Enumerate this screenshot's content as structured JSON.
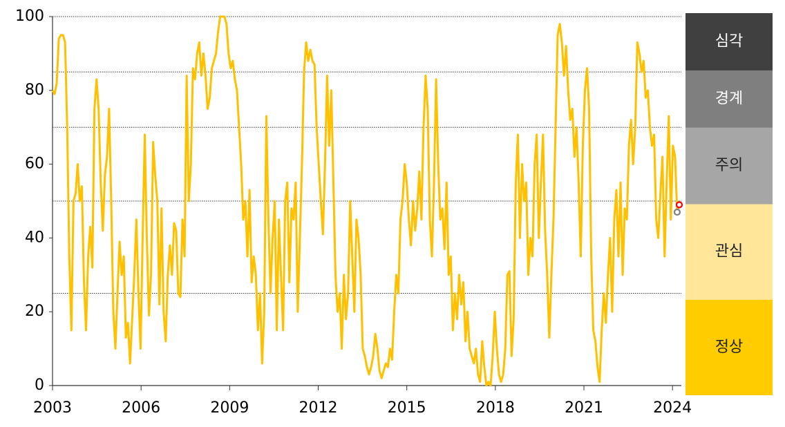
{
  "chart_data": {
    "type": "line",
    "x": [
      2003,
      2003.071,
      2003.142,
      2003.213,
      2003.284,
      2003.355,
      2003.426,
      2003.497,
      2003.568,
      2003.639,
      2003.71,
      2003.781,
      2003.852,
      2003.923,
      2003.994,
      2004.065,
      2004.136,
      2004.207,
      2004.278,
      2004.349,
      2004.42,
      2004.491,
      2004.562,
      2004.633,
      2004.704,
      2004.775,
      2004.846,
      2004.917,
      2004.988,
      2005.059,
      2005.13,
      2005.201,
      2005.272,
      2005.343,
      2005.414,
      2005.485,
      2005.556,
      2005.627,
      2005.698,
      2005.769,
      2005.84,
      2005.911,
      2005.982,
      2006.053,
      2006.124,
      2006.195,
      2006.266,
      2006.337,
      2006.408,
      2006.479,
      2006.55,
      2006.621,
      2006.692,
      2006.763,
      2006.834,
      2006.905,
      2006.976,
      2007.047,
      2007.118,
      2007.189,
      2007.26,
      2007.331,
      2007.402,
      2007.473,
      2007.544,
      2007.615,
      2007.686,
      2007.757,
      2007.828,
      2007.899,
      2007.97,
      2008.041,
      2008.112,
      2008.183,
      2008.254,
      2008.325,
      2008.396,
      2008.467,
      2008.538,
      2008.609,
      2008.68,
      2008.751,
      2008.822,
      2008.893,
      2008.964,
      2009.035,
      2009.106,
      2009.177,
      2009.248,
      2009.319,
      2009.39,
      2009.461,
      2009.532,
      2009.603,
      2009.674,
      2009.745,
      2009.816,
      2009.887,
      2009.958,
      2010.029,
      2010.1,
      2010.171,
      2010.242,
      2010.313,
      2010.384,
      2010.455,
      2010.526,
      2010.597,
      2010.668,
      2010.739,
      2010.81,
      2010.881,
      2010.952,
      2011.023,
      2011.094,
      2011.165,
      2011.236,
      2011.307,
      2011.378,
      2011.449,
      2011.52,
      2011.591,
      2011.662,
      2011.733,
      2011.804,
      2011.875,
      2011.946,
      2012.017,
      2012.088,
      2012.159,
      2012.23,
      2012.301,
      2012.372,
      2012.443,
      2012.514,
      2012.585,
      2012.656,
      2012.727,
      2012.798,
      2012.869,
      2012.94,
      2013.011,
      2013.082,
      2013.153,
      2013.224,
      2013.295,
      2013.366,
      2013.437,
      2013.508,
      2013.579,
      2013.65,
      2013.721,
      2013.792,
      2013.863,
      2013.934,
      2014.005,
      2014.076,
      2014.147,
      2014.218,
      2014.289,
      2014.36,
      2014.431,
      2014.502,
      2014.573,
      2014.644,
      2014.715,
      2014.786,
      2014.857,
      2014.928,
      2014.999,
      2015.07,
      2015.141,
      2015.212,
      2015.283,
      2015.354,
      2015.425,
      2015.496,
      2015.567,
      2015.638,
      2015.709,
      2015.78,
      2015.851,
      2015.922,
      2015.993,
      2016.064,
      2016.135,
      2016.206,
      2016.277,
      2016.348,
      2016.419,
      2016.49,
      2016.561,
      2016.632,
      2016.703,
      2016.774,
      2016.845,
      2016.916,
      2016.987,
      2017.058,
      2017.129,
      2017.2,
      2017.271,
      2017.342,
      2017.413,
      2017.484,
      2017.555,
      2017.626,
      2017.697,
      2017.768,
      2017.839,
      2017.91,
      2017.981,
      2018.052,
      2018.123,
      2018.194,
      2018.265,
      2018.336,
      2018.407,
      2018.478,
      2018.549,
      2018.62,
      2018.691,
      2018.762,
      2018.833,
      2018.904,
      2018.975,
      2019.046,
      2019.117,
      2019.188,
      2019.259,
      2019.33,
      2019.401,
      2019.472,
      2019.543,
      2019.614,
      2019.685,
      2019.756,
      2019.827,
      2019.898,
      2019.969,
      2020.04,
      2020.111,
      2020.182,
      2020.253,
      2020.324,
      2020.395,
      2020.466,
      2020.537,
      2020.608,
      2020.679,
      2020.75,
      2020.821,
      2020.892,
      2020.963,
      2021.034,
      2021.105,
      2021.176,
      2021.247,
      2021.318,
      2021.389,
      2021.46,
      2021.531,
      2021.602,
      2021.673,
      2021.744,
      2021.815,
      2021.886,
      2021.957,
      2022.028,
      2022.099,
      2022.17,
      2022.241,
      2022.312,
      2022.383,
      2022.454,
      2022.525,
      2022.596,
      2022.667,
      2022.738,
      2022.809,
      2022.88,
      2022.951,
      2023.022,
      2023.093,
      2023.164,
      2023.235,
      2023.306,
      2023.377,
      2023.448,
      2023.519,
      2023.59,
      2023.661,
      2023.732,
      2023.803,
      2023.874,
      2023.945,
      2024.016,
      2024.087,
      2024.158,
      2024.229
    ],
    "values": [
      80,
      79,
      82,
      94,
      95,
      95,
      93,
      70,
      35,
      15,
      50,
      52,
      60,
      50,
      54,
      28,
      15,
      35,
      43,
      32,
      75,
      83,
      75,
      55,
      42,
      57,
      62,
      75,
      50,
      20,
      10,
      25,
      39,
      30,
      35,
      13,
      17,
      6,
      18,
      30,
      45,
      25,
      10,
      40,
      68,
      40,
      19,
      30,
      66,
      57,
      50,
      22,
      48,
      20,
      12,
      30,
      38,
      30,
      44,
      42,
      25,
      24,
      45,
      35,
      84,
      50,
      60,
      86,
      83,
      90,
      93,
      84,
      90,
      84,
      75,
      78,
      86,
      88,
      90,
      96,
      100,
      100,
      100,
      98,
      90,
      86,
      88,
      83,
      80,
      70,
      60,
      45,
      50,
      35,
      53,
      28,
      35,
      30,
      15,
      25,
      6,
      20,
      73,
      45,
      25,
      40,
      50,
      15,
      45,
      30,
      15,
      50,
      55,
      28,
      48,
      45,
      55,
      20,
      40,
      60,
      85,
      93,
      88,
      91,
      88,
      87,
      70,
      60,
      50,
      41,
      60,
      84,
      65,
      80,
      55,
      30,
      20,
      25,
      10,
      30,
      18,
      25,
      50,
      35,
      20,
      45,
      40,
      30,
      10,
      8,
      5,
      3,
      5,
      8,
      14,
      10,
      4,
      2,
      4,
      6,
      5,
      10,
      7,
      20,
      30,
      25,
      45,
      50,
      60,
      55,
      45,
      38,
      50,
      42,
      48,
      58,
      45,
      70,
      84,
      75,
      45,
      35,
      55,
      83,
      60,
      45,
      48,
      37,
      55,
      30,
      35,
      15,
      25,
      18,
      30,
      22,
      28,
      12,
      20,
      10,
      8,
      6,
      10,
      3,
      1,
      12,
      5,
      0,
      1,
      0,
      8,
      20,
      10,
      3,
      1,
      3,
      10,
      30,
      31,
      8,
      18,
      55,
      68,
      40,
      60,
      50,
      55,
      30,
      40,
      35,
      60,
      68,
      40,
      55,
      68,
      42,
      30,
      13,
      30,
      45,
      70,
      95,
      98,
      93,
      84,
      92,
      80,
      72,
      75,
      62,
      70,
      55,
      35,
      65,
      80,
      86,
      75,
      35,
      15,
      12,
      5,
      1,
      15,
      25,
      17,
      30,
      40,
      20,
      45,
      53,
      35,
      55,
      30,
      48,
      45,
      65,
      72,
      60,
      70,
      93,
      90,
      85,
      88,
      78,
      80,
      70,
      65,
      68,
      45,
      40,
      52,
      62,
      35,
      55,
      73,
      45,
      65,
      62,
      47,
      49
    ],
    "color": "#ffc000",
    "markers": [
      {
        "x": 2024.158,
        "value": 47,
        "color": "#7f7f7f"
      },
      {
        "x": 2024.229,
        "value": 49,
        "color": "#ff0000"
      }
    ],
    "xlim": [
      2003,
      2024.3
    ],
    "xticks": [
      2003,
      2006,
      2009,
      2012,
      2015,
      2018,
      2021,
      2024
    ],
    "ylim": [
      0,
      100
    ],
    "yticks": [
      0,
      20,
      40,
      60,
      80,
      100
    ],
    "levels": [
      {
        "label": "정상",
        "from": 0,
        "to": 25,
        "color": "#ffcc00",
        "text_color": "#222222"
      },
      {
        "label": "관심",
        "from": 25,
        "to": 50,
        "color": "#ffe699",
        "text_color": "#222222"
      },
      {
        "label": "주의",
        "from": 50,
        "to": 70,
        "color": "#a6a6a6",
        "text_color": "#222222"
      },
      {
        "label": "경계",
        "from": 70,
        "to": 85,
        "color": "#7f7f7f",
        "text_color": "#ffffff"
      },
      {
        "label": "심각",
        "from": 85,
        "to": 100,
        "color": "#404040",
        "text_color": "#ffffff"
      }
    ]
  }
}
